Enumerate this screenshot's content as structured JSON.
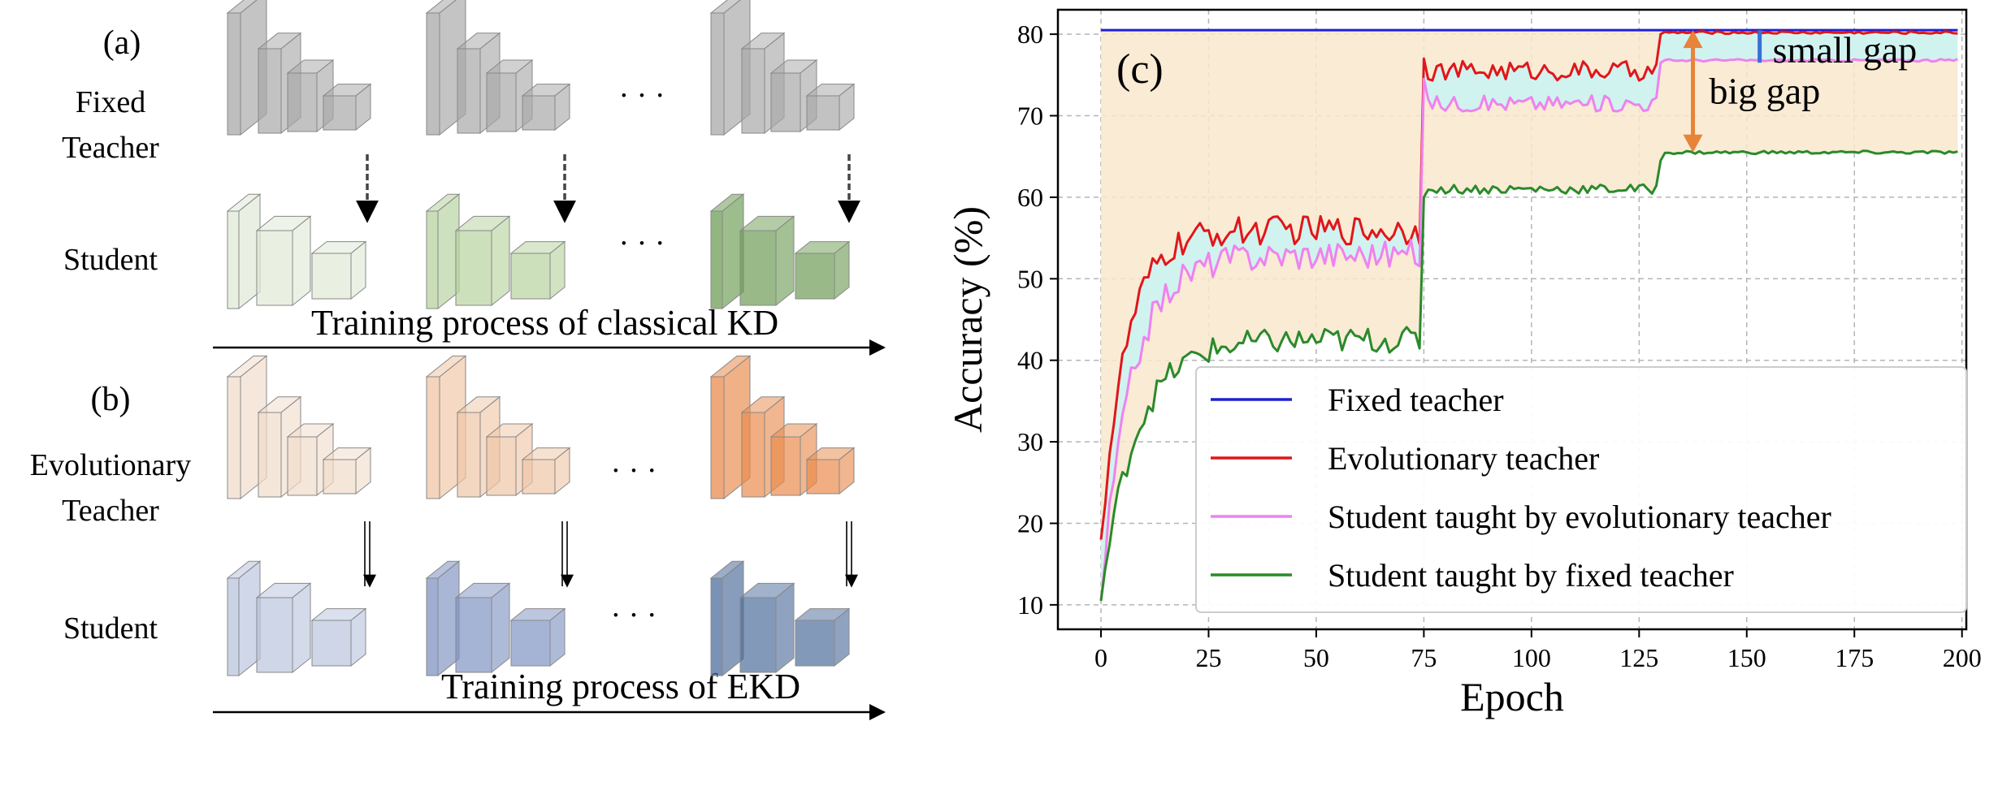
{
  "left_panel": {
    "panel_a": {
      "tag": "(a)",
      "teacher_label": [
        "Fixed",
        "Teacher"
      ],
      "student_label": "Student",
      "process_label": "Training process of classical KD",
      "ellipsis": "· · ·",
      "teacher_colors": [
        "#a8a8a8",
        "#a8a8a8",
        "#a8a8a8"
      ],
      "student_colors": [
        "#dfe9d6",
        "#b7d39f",
        "#6e9d55"
      ]
    },
    "panel_b": {
      "tag": "(b)",
      "teacher_label": [
        "Evolutionary",
        "Teacher"
      ],
      "student_label": "Student",
      "process_label": "Training process of EKD",
      "ellipsis": "· · ·",
      "teacher_colors": [
        "#f1dccb",
        "#f0c6a6",
        "#e98b4d"
      ],
      "student_colors": [
        "#b9c4dd",
        "#7f93c2",
        "#4e6d9c"
      ]
    },
    "divider_color": "#e8833a"
  },
  "chart_data": {
    "type": "line",
    "tag": "(c)",
    "xlabel": "Epoch",
    "ylabel": "Accuracy (%)",
    "xlim": [
      -10,
      201
    ],
    "ylim": [
      7,
      83
    ],
    "xticks": [
      0,
      25,
      50,
      75,
      100,
      125,
      150,
      175,
      200
    ],
    "yticks": [
      10,
      20,
      30,
      40,
      50,
      60,
      70,
      80
    ],
    "grid": true,
    "legend_position": "lower-right",
    "series": [
      {
        "name": "Fixed teacher",
        "color": "#1f1fd6",
        "segments": [
          {
            "x0": 0,
            "x1": 199,
            "level": 80.5
          }
        ]
      },
      {
        "name": "Evolutionary teacher",
        "color": "#e0161b",
        "segments": [
          {
            "x0": 0,
            "x1": 74,
            "start": 18,
            "rise": 6,
            "level": 56,
            "jitter": 1.8
          },
          {
            "x0": 75,
            "x1": 129,
            "start": 77,
            "rise": 0,
            "level": 75.5,
            "jitter": 1.2
          },
          {
            "x0": 130,
            "x1": 199,
            "start": 80,
            "rise": 0,
            "level": 80.2,
            "jitter": 0.15
          }
        ]
      },
      {
        "name": "Student taught by evolutionary teacher",
        "color": "#ee82ee",
        "segments": [
          {
            "x0": 0,
            "x1": 74,
            "start": 10.5,
            "rise": 7,
            "level": 53,
            "jitter": 1.8
          },
          {
            "x0": 75,
            "x1": 129,
            "start": 74.5,
            "rise": 0,
            "level": 71.5,
            "jitter": 1.0
          },
          {
            "x0": 130,
            "x1": 199,
            "start": 76.5,
            "rise": 0,
            "level": 76.8,
            "jitter": 0.15
          }
        ]
      },
      {
        "name": "Student taught by fixed teacher",
        "color": "#2a8a2a",
        "segments": [
          {
            "x0": 0,
            "x1": 74,
            "start": 10.5,
            "rise": 8,
            "level": 42.5,
            "jitter": 1.6
          },
          {
            "x0": 75,
            "x1": 129,
            "start": 60,
            "rise": 0,
            "level": 61,
            "jitter": 0.6
          },
          {
            "x0": 130,
            "x1": 199,
            "start": 64.5,
            "rise": 0,
            "level": 65.5,
            "jitter": 0.2
          }
        ]
      }
    ],
    "shading": [
      {
        "between": [
          "Fixed teacher",
          "Student taught by fixed teacher"
        ],
        "color": "#f8e7cc"
      },
      {
        "between": [
          "Evolutionary teacher",
          "Student taught by evolutionary teacher"
        ],
        "color": "#c9f5f5"
      }
    ],
    "annotations": [
      {
        "text": "small gap",
        "x": 153,
        "y": 76.5,
        "y_to": 80.5,
        "color": "#3a6fd6"
      },
      {
        "text": "big gap",
        "x": 137.5,
        "y": 65.5,
        "y_to": 80.5,
        "color": "#e8833a"
      }
    ]
  }
}
